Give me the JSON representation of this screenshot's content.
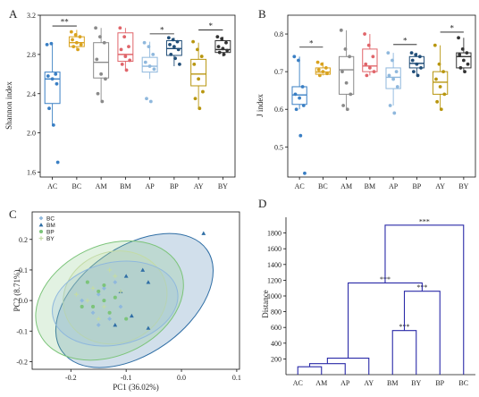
{
  "panels": {
    "a": "A",
    "b": "B",
    "c": "C",
    "d": "D"
  },
  "chart_data": [
    {
      "type": "box",
      "ylabel": "Shannon index",
      "ylim": [
        1.55,
        3.2
      ],
      "yticks": [
        "1.6",
        "2.0",
        "2.4",
        "2.8",
        "3.2"
      ],
      "ytick_values": [
        1.6,
        2.0,
        2.4,
        2.8,
        3.2
      ],
      "categories": [
        "AC",
        "BC",
        "AM",
        "BM",
        "AP",
        "BP",
        "AY",
        "BY"
      ],
      "colors": [
        "#3a7fc4",
        "#d9a21e",
        "#8a8a8a",
        "#e0656a",
        "#8fb8dd",
        "#214e78",
        "#b8960f",
        "#333333"
      ],
      "boxes": [
        {
          "lower": 2.07,
          "q1": 2.3,
          "median": 2.55,
          "q3": 2.62,
          "upper": 2.9
        },
        {
          "lower": 2.85,
          "q1": 2.88,
          "median": 2.92,
          "q3": 2.98,
          "upper": 3.05
        },
        {
          "lower": 2.32,
          "q1": 2.56,
          "median": 2.72,
          "q3": 2.92,
          "upper": 3.07
        },
        {
          "lower": 2.63,
          "q1": 2.73,
          "median": 2.8,
          "q3": 3.02,
          "upper": 3.07
        },
        {
          "lower": 2.55,
          "q1": 2.62,
          "median": 2.68,
          "q3": 2.77,
          "upper": 2.93
        },
        {
          "lower": 2.68,
          "q1": 2.79,
          "median": 2.86,
          "q3": 2.94,
          "upper": 2.97
        },
        {
          "lower": 2.25,
          "q1": 2.48,
          "median": 2.6,
          "q3": 2.75,
          "upper": 2.92
        },
        {
          "lower": 2.78,
          "q1": 2.82,
          "median": 2.85,
          "q3": 2.94,
          "upper": 2.98
        }
      ],
      "points": [
        [
          2.9,
          2.91,
          2.6,
          2.58,
          2.55,
          2.5,
          2.25,
          2.08,
          1.7
        ],
        [
          3.03,
          3.0,
          2.98,
          2.95,
          2.92,
          2.9,
          2.88,
          2.85
        ],
        [
          3.07,
          2.98,
          2.92,
          2.75,
          2.6,
          2.55,
          2.4,
          2.32
        ],
        [
          3.07,
          2.98,
          2.88,
          2.85,
          2.78,
          2.74,
          2.7,
          2.64
        ],
        [
          2.92,
          2.88,
          2.8,
          2.72,
          2.68,
          2.65,
          2.35,
          2.32
        ],
        [
          2.97,
          2.95,
          2.93,
          2.9,
          2.88,
          2.85,
          2.8,
          2.76,
          2.7
        ],
        [
          2.93,
          2.85,
          2.78,
          2.7,
          2.55,
          2.42,
          2.35,
          2.25
        ],
        [
          2.98,
          2.96,
          2.92,
          2.88,
          2.86,
          2.84,
          2.82,
          2.8
        ]
      ],
      "significance": [
        {
          "from": "AC",
          "to": "BC",
          "label": "**",
          "y": 3.09
        },
        {
          "from": "AP",
          "to": "BP",
          "label": "*",
          "y": 3.01
        },
        {
          "from": "AY",
          "to": "BY",
          "label": "*",
          "y": 3.05
        }
      ]
    },
    {
      "type": "box",
      "ylabel": "J index",
      "ylim": [
        0.42,
        0.85
      ],
      "yticks": [
        "0.5",
        "0.6",
        "0.7",
        "0.8"
      ],
      "ytick_values": [
        0.5,
        0.6,
        0.7,
        0.8
      ],
      "categories": [
        "AC",
        "BC",
        "AM",
        "BM",
        "AP",
        "BP",
        "AY",
        "BY"
      ],
      "colors": [
        "#3a7fc4",
        "#d9a21e",
        "#8a8a8a",
        "#e0656a",
        "#8fb8dd",
        "#214e78",
        "#b8960f",
        "#333333"
      ],
      "boxes": [
        {
          "lower": 0.6,
          "q1": 0.613,
          "median": 0.638,
          "q3": 0.66,
          "upper": 0.74
        },
        {
          "lower": 0.69,
          "q1": 0.693,
          "median": 0.699,
          "q3": 0.71,
          "upper": 0.725
        },
        {
          "lower": 0.6,
          "q1": 0.64,
          "median": 0.705,
          "q3": 0.74,
          "upper": 0.81
        },
        {
          "lower": 0.69,
          "q1": 0.7,
          "median": 0.715,
          "q3": 0.76,
          "upper": 0.8
        },
        {
          "lower": 0.61,
          "q1": 0.655,
          "median": 0.685,
          "q3": 0.71,
          "upper": 0.75
        },
        {
          "lower": 0.69,
          "q1": 0.71,
          "median": 0.722,
          "q3": 0.74,
          "upper": 0.75
        },
        {
          "lower": 0.6,
          "q1": 0.64,
          "median": 0.672,
          "q3": 0.7,
          "upper": 0.77
        },
        {
          "lower": 0.7,
          "q1": 0.71,
          "median": 0.74,
          "q3": 0.75,
          "upper": 0.79
        }
      ],
      "points": [
        [
          0.74,
          0.73,
          0.66,
          0.64,
          0.63,
          0.61,
          0.6,
          0.53,
          0.43
        ],
        [
          0.725,
          0.72,
          0.71,
          0.705,
          0.7,
          0.695,
          0.69
        ],
        [
          0.81,
          0.76,
          0.74,
          0.7,
          0.67,
          0.64,
          0.61,
          0.6
        ],
        [
          0.8,
          0.77,
          0.74,
          0.72,
          0.71,
          0.7,
          0.69
        ],
        [
          0.75,
          0.73,
          0.7,
          0.69,
          0.68,
          0.66,
          0.61,
          0.59
        ],
        [
          0.75,
          0.745,
          0.74,
          0.73,
          0.72,
          0.71,
          0.7,
          0.69
        ],
        [
          0.77,
          0.72,
          0.7,
          0.68,
          0.66,
          0.64,
          0.62,
          0.6
        ],
        [
          0.79,
          0.76,
          0.75,
          0.745,
          0.73,
          0.72,
          0.71,
          0.7
        ]
      ],
      "significance": [
        {
          "from": "AC",
          "to": "BC",
          "label": "*",
          "y": 0.765
        },
        {
          "from": "AP",
          "to": "BP",
          "label": "*",
          "y": 0.772
        },
        {
          "from": "AY",
          "to": "BY",
          "label": "*",
          "y": 0.805
        }
      ]
    },
    {
      "type": "scatter",
      "xlabel": "PC1 (36.02%)",
      "ylabel": "PC2 (8.71%)",
      "xlim": [
        -0.27,
        0.105
      ],
      "ylim": [
        -0.225,
        0.29
      ],
      "xticks": [
        "-0.2",
        "-0.1",
        "0.0",
        "0.1"
      ],
      "xtick_values": [
        -0.2,
        -0.1,
        0.0,
        0.1
      ],
      "yticks": [
        "-0.2",
        "-0.1",
        "0.0",
        "0.1",
        "0.2"
      ],
      "ytick_values": [
        -0.2,
        -0.1,
        0.0,
        0.1,
        0.2
      ],
      "legend_position": "top-left",
      "series": [
        {
          "name": "BC",
          "color": "#8fb8dd",
          "marker": "diamond",
          "ellipse": {
            "cx": -0.12,
            "cy": -0.01,
            "rx": 0.115,
            "ry": 0.135,
            "angle": -12
          },
          "x": [
            -0.18,
            -0.16,
            -0.15,
            -0.13,
            -0.12,
            -0.11,
            -0.15,
            -0.14
          ],
          "y": [
            0.0,
            -0.04,
            0.02,
            -0.06,
            0.06,
            -0.02,
            -0.08,
            0.04
          ]
        },
        {
          "name": "BM",
          "color": "#2f6ea5",
          "marker": "triangle",
          "ellipse": {
            "cx": -0.085,
            "cy": 0.0,
            "rx": 0.16,
            "ry": 0.175,
            "angle": -35
          },
          "x": [
            0.04,
            -0.07,
            -0.06,
            -0.1,
            -0.09,
            -0.12,
            -0.11,
            -0.06
          ],
          "y": [
            0.22,
            0.1,
            0.06,
            0.08,
            -0.05,
            -0.08,
            0.03,
            -0.09
          ]
        },
        {
          "name": "BP",
          "color": "#7cc47a",
          "marker": "circle",
          "ellipse": {
            "cx": -0.13,
            "cy": 0.0,
            "rx": 0.14,
            "ry": 0.18,
            "angle": -25
          },
          "x": [
            -0.17,
            -0.16,
            -0.14,
            -0.13,
            -0.15,
            -0.12,
            -0.1,
            -0.18,
            -0.14
          ],
          "y": [
            0.06,
            -0.02,
            0.0,
            -0.04,
            0.03,
            0.01,
            -0.06,
            -0.02,
            0.05
          ]
        },
        {
          "name": "BY",
          "color": "#c3dba6",
          "marker": "plus",
          "ellipse": {
            "cx": -0.12,
            "cy": 0.01,
            "rx": 0.095,
            "ry": 0.15,
            "angle": -18
          },
          "x": [
            -0.19,
            -0.16,
            -0.14,
            -0.12,
            -0.13,
            -0.15,
            -0.11,
            -0.17
          ],
          "y": [
            0.02,
            0.04,
            -0.02,
            0.08,
            0.1,
            -0.06,
            0.03,
            0.0
          ]
        }
      ]
    },
    {
      "type": "dendrogram",
      "ylabel": "Distance",
      "ylim": [
        0,
        2000
      ],
      "yticks": [
        "200",
        "400",
        "600",
        "800",
        "1000",
        "1200",
        "1400",
        "1600",
        "1800"
      ],
      "ytick_values": [
        200,
        400,
        600,
        800,
        1000,
        1200,
        1400,
        1600,
        1800
      ],
      "leaves": [
        "AC",
        "AM",
        "AP",
        "AY",
        "BM",
        "BY",
        "BP",
        "BC"
      ],
      "color": "#2a2aa8",
      "merges": [
        {
          "left": "AC",
          "right": "AM",
          "height": 100,
          "label": ""
        },
        {
          "left": "m0",
          "right": "AP",
          "height": 140,
          "label": ""
        },
        {
          "left": "m1",
          "right": "AY",
          "height": 210,
          "label": ""
        },
        {
          "left": "BM",
          "right": "BY",
          "height": 560,
          "label": "***"
        },
        {
          "left": "m3",
          "right": "BP",
          "height": 1060,
          "label": "***"
        },
        {
          "left": "m2",
          "right": "m4",
          "height": 1165,
          "label": "***"
        },
        {
          "left": "m5",
          "right": "BC",
          "height": 1900,
          "label": "***"
        }
      ]
    }
  ]
}
